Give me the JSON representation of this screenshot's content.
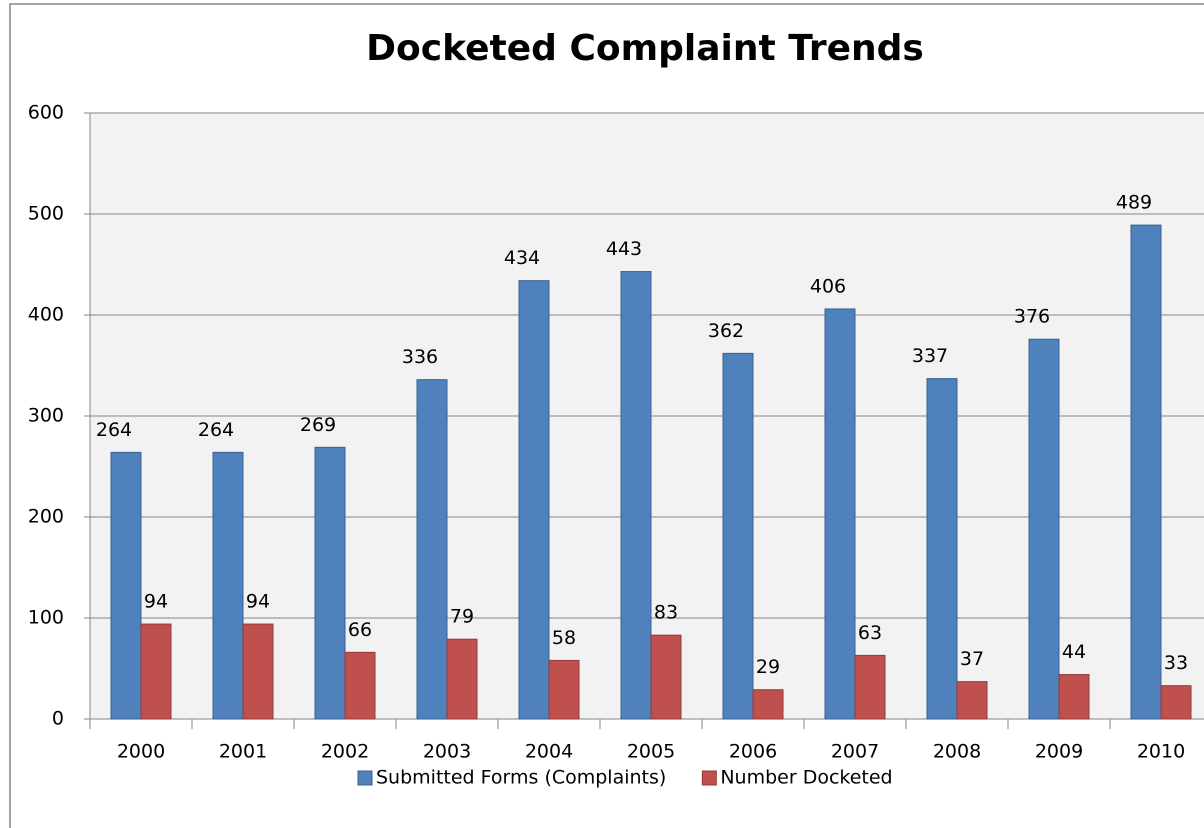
{
  "chart_data": {
    "type": "bar",
    "title": "Docketed Complaint Trends",
    "categories": [
      "2000",
      "2001",
      "2002",
      "2003",
      "2004",
      "2005",
      "2006",
      "2007",
      "2008",
      "2009",
      "2010"
    ],
    "series": [
      {
        "name": "Submitted Forms (Complaints)",
        "color": "#4f81bd",
        "values": [
          264,
          264,
          269,
          336,
          434,
          443,
          362,
          406,
          337,
          376,
          489
        ]
      },
      {
        "name": "Number Docketed",
        "color": "#c0504d",
        "values": [
          94,
          94,
          66,
          79,
          58,
          83,
          29,
          63,
          37,
          44,
          33
        ]
      }
    ],
    "ylim": [
      0,
      600
    ],
    "yticks": [
      0,
      100,
      200,
      300,
      400,
      500,
      600
    ],
    "grid": true,
    "legend": "bottom"
  }
}
